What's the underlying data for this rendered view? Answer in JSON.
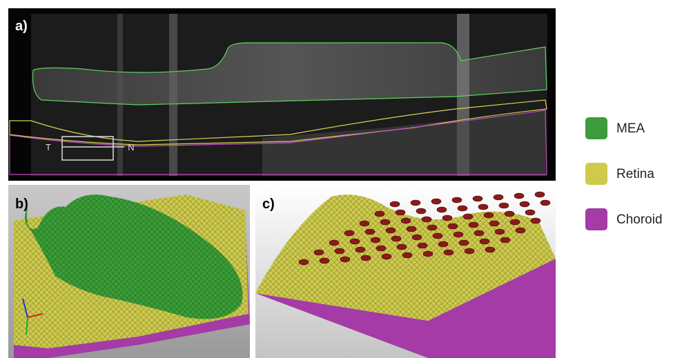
{
  "panels": {
    "a": {
      "label": "a)",
      "left_marker": "T",
      "right_marker": "N"
    },
    "b": {
      "label": "b)"
    },
    "c": {
      "label": "c)"
    }
  },
  "legend": [
    {
      "name": "MEA",
      "color": "#3d9b3d"
    },
    {
      "name": "Retina",
      "color": "#cdca4c"
    },
    {
      "name": "Choroid",
      "color": "#a43ba6"
    }
  ]
}
